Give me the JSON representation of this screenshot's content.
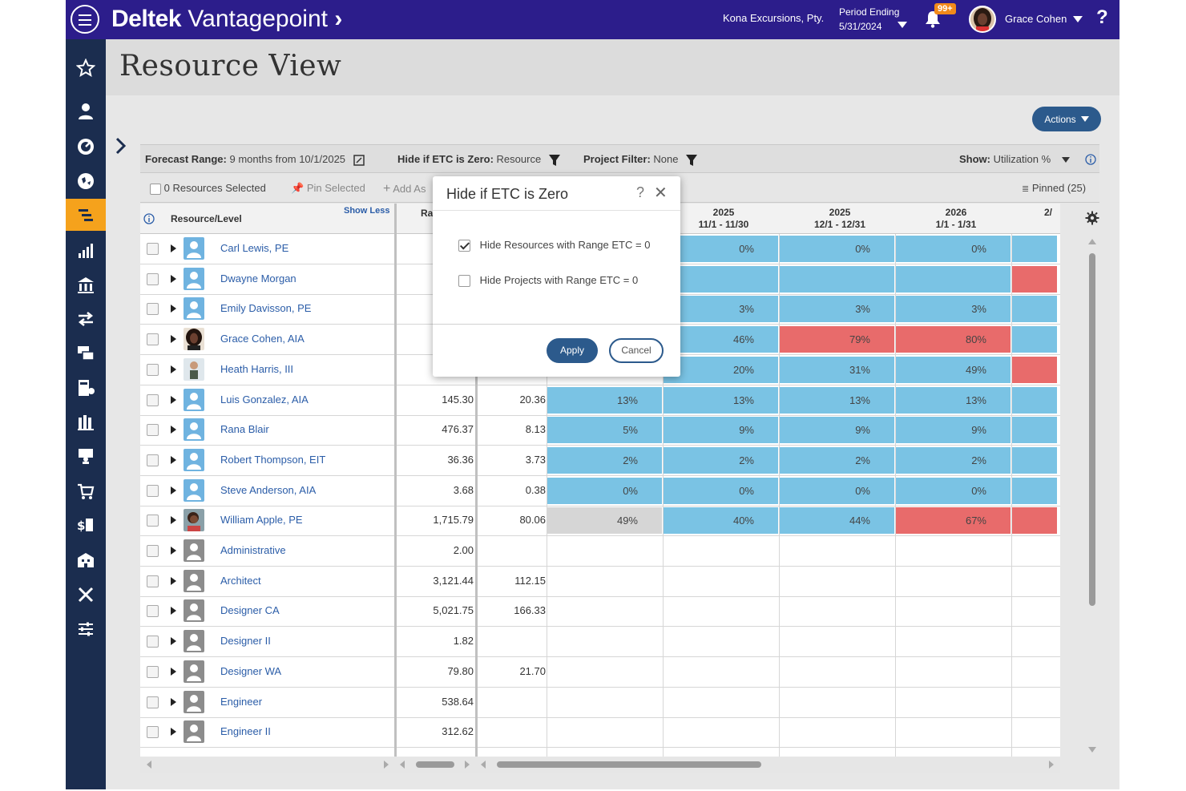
{
  "topbar": {
    "brand_bold": "Deltek",
    "brand_light": "Vantagepoint",
    "company": "Kona Excursions, Pty.",
    "period_label": "Period Ending",
    "period_date": "5/31/2024",
    "notifications_badge": "99+",
    "user_name": "Grace Cohen",
    "help": "?"
  },
  "page": {
    "title": "Resource View",
    "actions_label": "Actions"
  },
  "filterbar": {
    "forecast_label": "Forecast Range:",
    "forecast_value": "9 months from 10/1/2025",
    "etc_label": "Hide if ETC is Zero:",
    "etc_value": "Resource",
    "project_label": "Project Filter:",
    "project_value": "None",
    "show_label": "Show:",
    "show_value": "Utilization %"
  },
  "toolbar": {
    "selected": "0 Resources Selected",
    "pin_selected": "Pin Selected",
    "add_as": "Add As",
    "pinned": "Pinned (25)"
  },
  "grid": {
    "col_resource": "Resource/Level",
    "show_less": "Show Less",
    "col_ra": "Ra",
    "periods": [
      {
        "year": "2025",
        "range": "11/1 - 11/30"
      },
      {
        "year": "2025",
        "range": "12/1 - 12/31"
      },
      {
        "year": "2026",
        "range": "1/1 - 1/31"
      },
      {
        "year": "",
        "range": "2/"
      }
    ],
    "rows": [
      {
        "name": "Carl Lewis, PE",
        "c1": "",
        "c2": "",
        "p0": "",
        "p1": "0%",
        "p2": "0%",
        "p3": "0%",
        "s1": "blue",
        "s2": "blue",
        "s3": "blue",
        "s4": "blue"
      },
      {
        "name": "Dwayne Morgan",
        "c1": "",
        "c2": "",
        "p0": "",
        "p1": "",
        "p2": "",
        "p3": "",
        "s1": "blue",
        "s2": "blue",
        "s3": "blue",
        "s4": "red"
      },
      {
        "name": "Emily Davisson, PE",
        "c1": "",
        "c2": "",
        "p0": "",
        "p1": "3%",
        "p2": "3%",
        "p3": "3%",
        "s1": "blue",
        "s2": "blue",
        "s3": "blue",
        "s4": "blue"
      },
      {
        "name": "Grace Cohen, AIA",
        "c1": "",
        "c2": "",
        "p0": "",
        "p1": "46%",
        "p2": "79%",
        "p3": "80%",
        "s1": "blue",
        "s2": "red",
        "s3": "red",
        "s4": "blue"
      },
      {
        "name": "Heath Harris, III",
        "c1": "",
        "c2": "",
        "p0": "",
        "p1": "20%",
        "p2": "31%",
        "p3": "49%",
        "s1": "blue",
        "s2": "blue",
        "s3": "blue",
        "s4": "red"
      },
      {
        "name": "Luis Gonzalez, AIA",
        "c1": "145.30",
        "c2": "20.36",
        "p0": "13%",
        "p1": "13%",
        "p2": "13%",
        "p3": "13%",
        "s0": "blue",
        "s1": "blue",
        "s2": "blue",
        "s3": "blue",
        "s4": "blue"
      },
      {
        "name": "Rana Blair",
        "c1": "476.37",
        "c2": "8.13",
        "p0": "5%",
        "p1": "9%",
        "p2": "9%",
        "p3": "9%",
        "s0": "blue",
        "s1": "blue",
        "s2": "blue",
        "s3": "blue",
        "s4": "blue"
      },
      {
        "name": "Robert Thompson, EIT",
        "c1": "36.36",
        "c2": "3.73",
        "p0": "2%",
        "p1": "2%",
        "p2": "2%",
        "p3": "2%",
        "s0": "blue",
        "s1": "blue",
        "s2": "blue",
        "s3": "blue",
        "s4": "blue"
      },
      {
        "name": "Steve Anderson, AIA",
        "c1": "3.68",
        "c2": "0.38",
        "p0": "0%",
        "p1": "0%",
        "p2": "0%",
        "p3": "0%",
        "s0": "blue",
        "s1": "blue",
        "s2": "blue",
        "s3": "blue",
        "s4": "blue"
      },
      {
        "name": "William Apple, PE",
        "c1": "1,715.79",
        "c2": "80.06",
        "p0": "49%",
        "p1": "40%",
        "p2": "44%",
        "p3": "67%",
        "s0": "gray",
        "s1": "blue",
        "s2": "blue",
        "s3": "red",
        "s4": "red"
      },
      {
        "name": "Administrative",
        "c1": "2.00",
        "c2": ""
      },
      {
        "name": "Architect",
        "c1": "3,121.44",
        "c2": "112.15"
      },
      {
        "name": "Designer CA",
        "c1": "5,021.75",
        "c2": "166.33"
      },
      {
        "name": "Designer II",
        "c1": "1.82",
        "c2": ""
      },
      {
        "name": "Designer WA",
        "c1": "79.80",
        "c2": "21.70"
      },
      {
        "name": "Engineer",
        "c1": "538.64",
        "c2": ""
      },
      {
        "name": "Engineer II",
        "c1": "312.62",
        "c2": ""
      }
    ]
  },
  "modal": {
    "title": "Hide if ETC is Zero",
    "help": "?",
    "close": "✕",
    "option1": "Hide Resources with Range ETC = 0",
    "option1_checked": true,
    "option2": "Hide Projects with Range ETC = 0",
    "option2_checked": false,
    "apply": "Apply",
    "cancel": "Cancel"
  },
  "colors": {
    "topbar": "#2c1d8b",
    "sidebar": "#1b2d4f",
    "sidebar_active": "#f5a21c",
    "util_blue": "#7ac3e4",
    "util_red": "#e86b6b",
    "primary_button": "#2c5a8c",
    "link": "#2b5da8"
  },
  "sidebar_icons": [
    "star-icon",
    "person-icon",
    "dashboard-icon",
    "globe-icon",
    "resource-view-icon",
    "chart-icon",
    "bank-icon",
    "transfer-icon",
    "payment-icon",
    "billing-icon",
    "book-icon",
    "presenter-icon",
    "cart-icon",
    "money-icon",
    "building-icon",
    "tools-icon",
    "settings-sliders-icon"
  ]
}
